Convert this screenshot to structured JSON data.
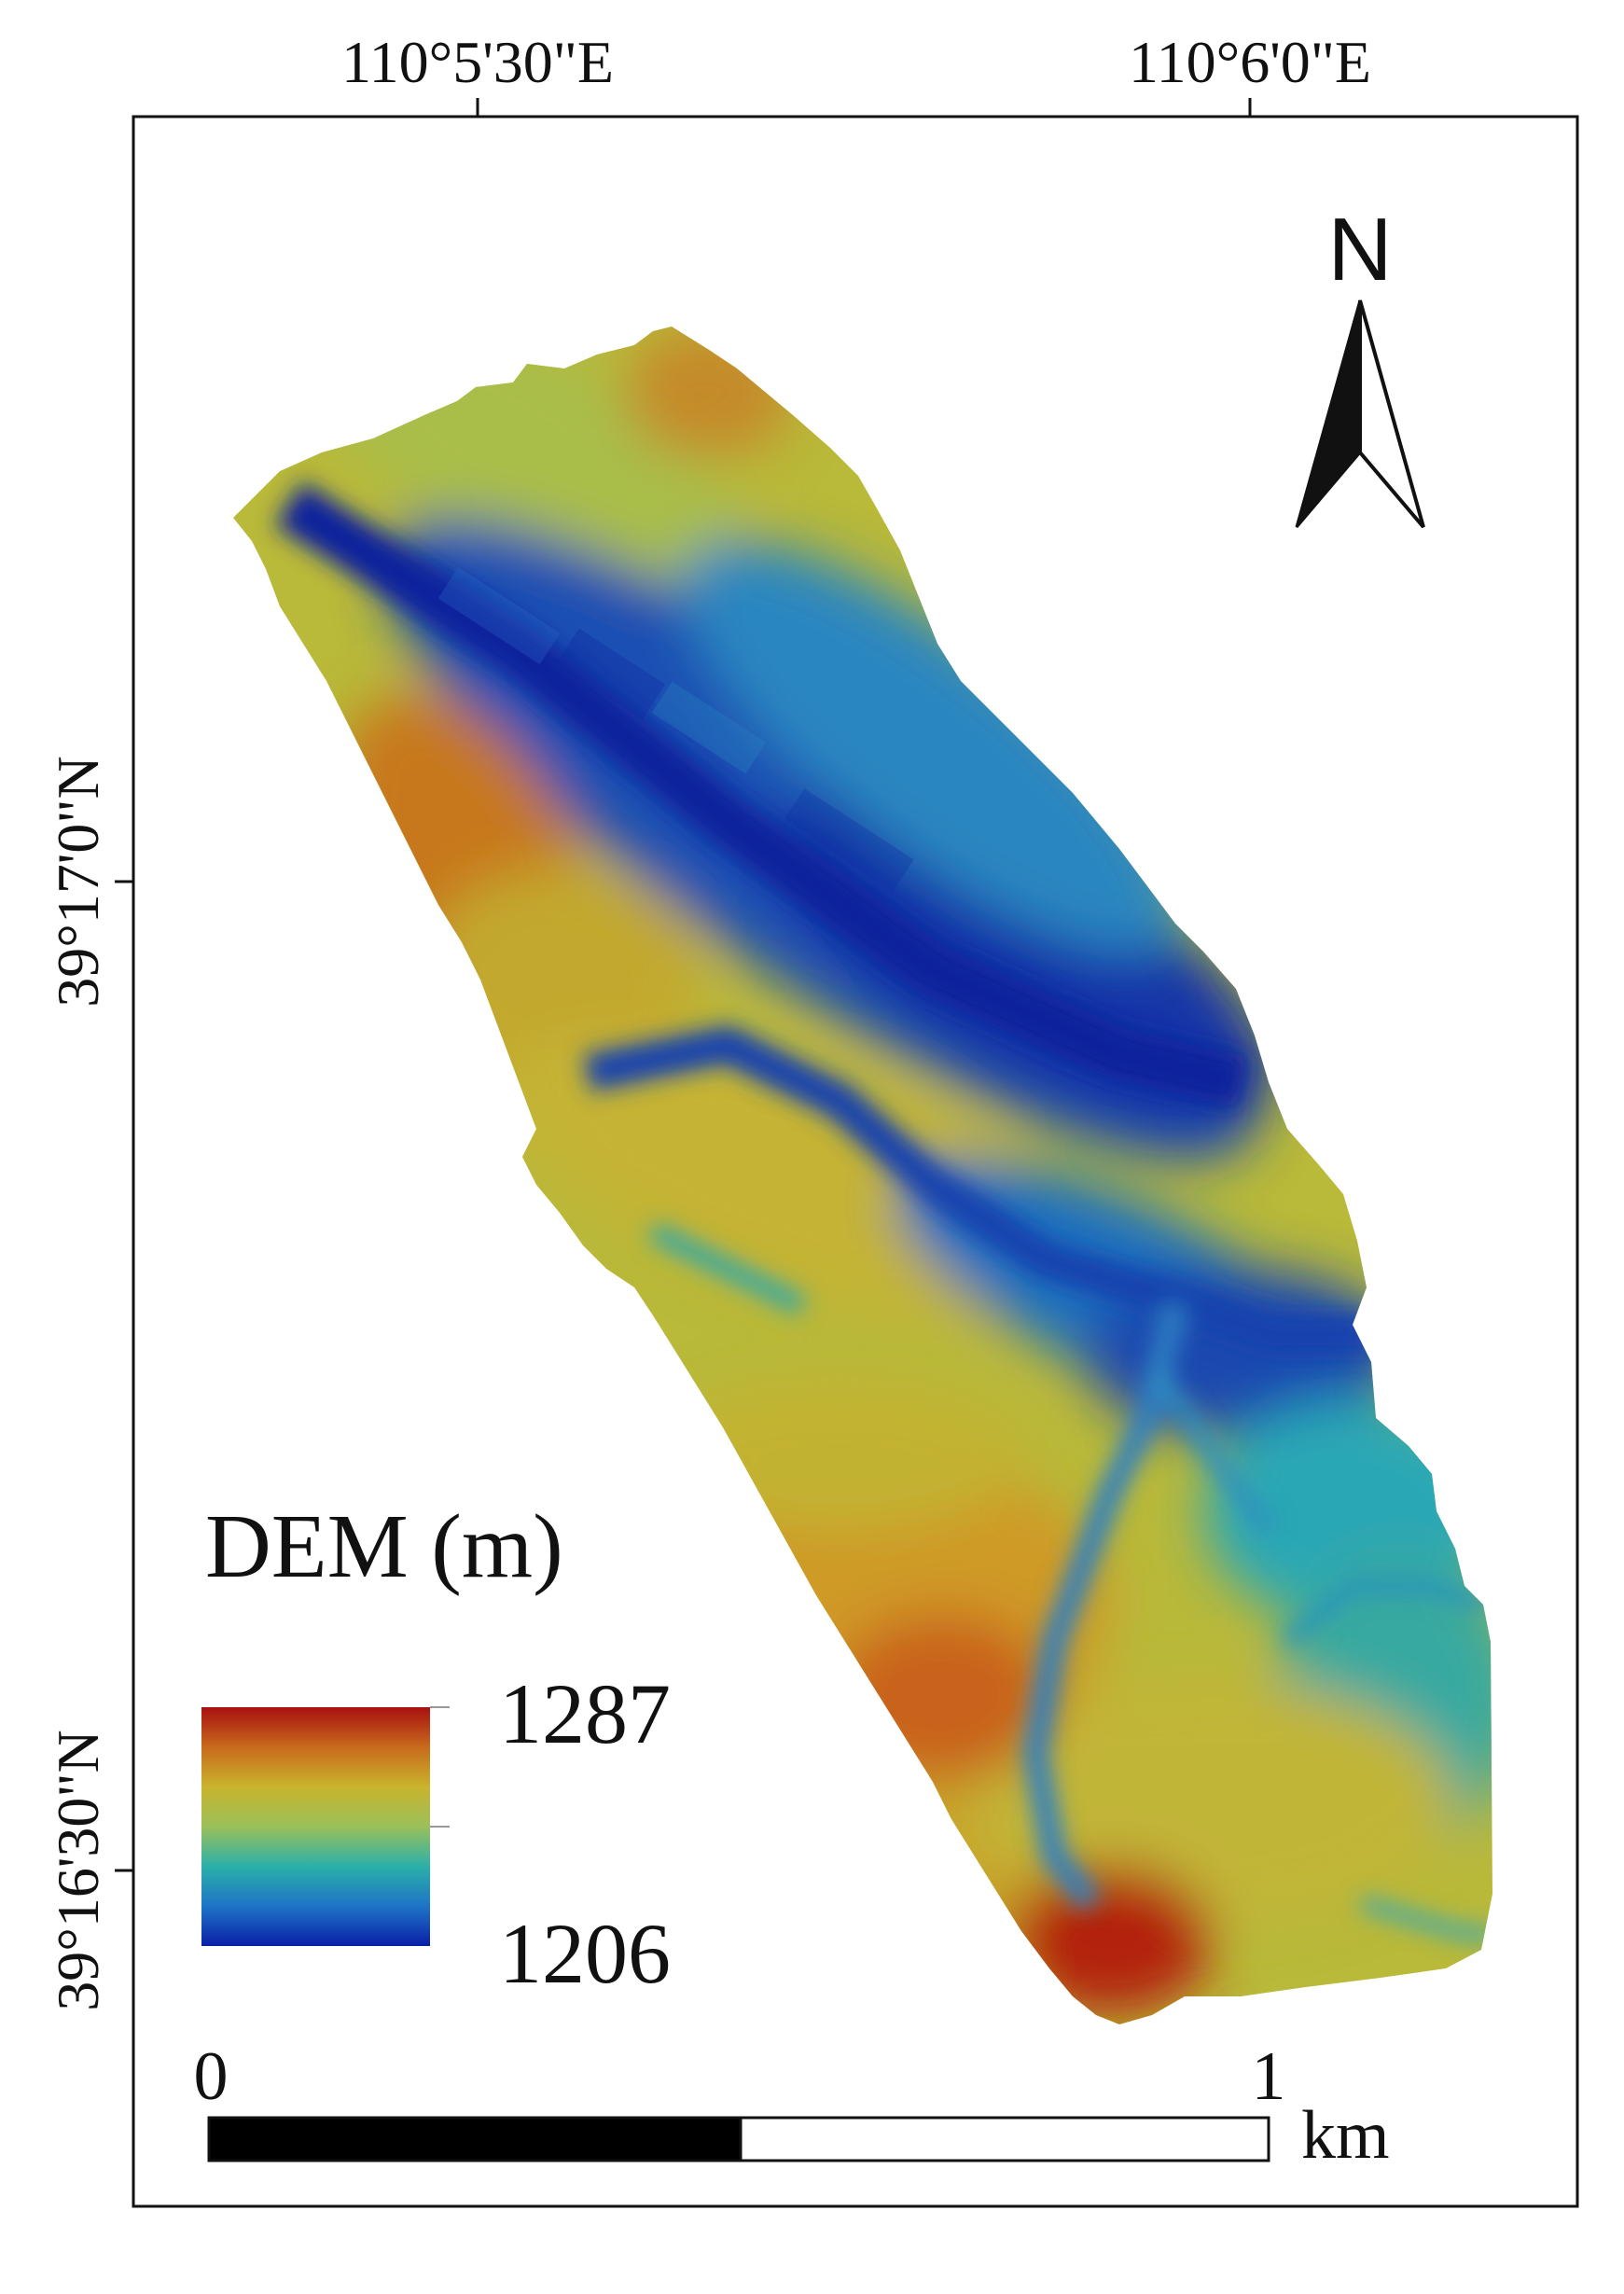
{
  "map": {
    "top_ticks": [
      "110°5'30\"E",
      "110°6'0\"E"
    ],
    "left_ticks": [
      "39°17'0\"N",
      "39°16'30\"N"
    ],
    "north_label": "N",
    "legend": {
      "title": "DEM (m)",
      "max_label": "1287",
      "min_label": "1206",
      "ramp_colors": [
        "#0a1fa8",
        "#1e74c6",
        "#2bb0a8",
        "#9bc05a",
        "#c9b32c",
        "#c86a1c",
        "#a81010"
      ]
    },
    "scale_bar": {
      "start_label": "0",
      "end_label": "1",
      "unit": "km"
    }
  }
}
